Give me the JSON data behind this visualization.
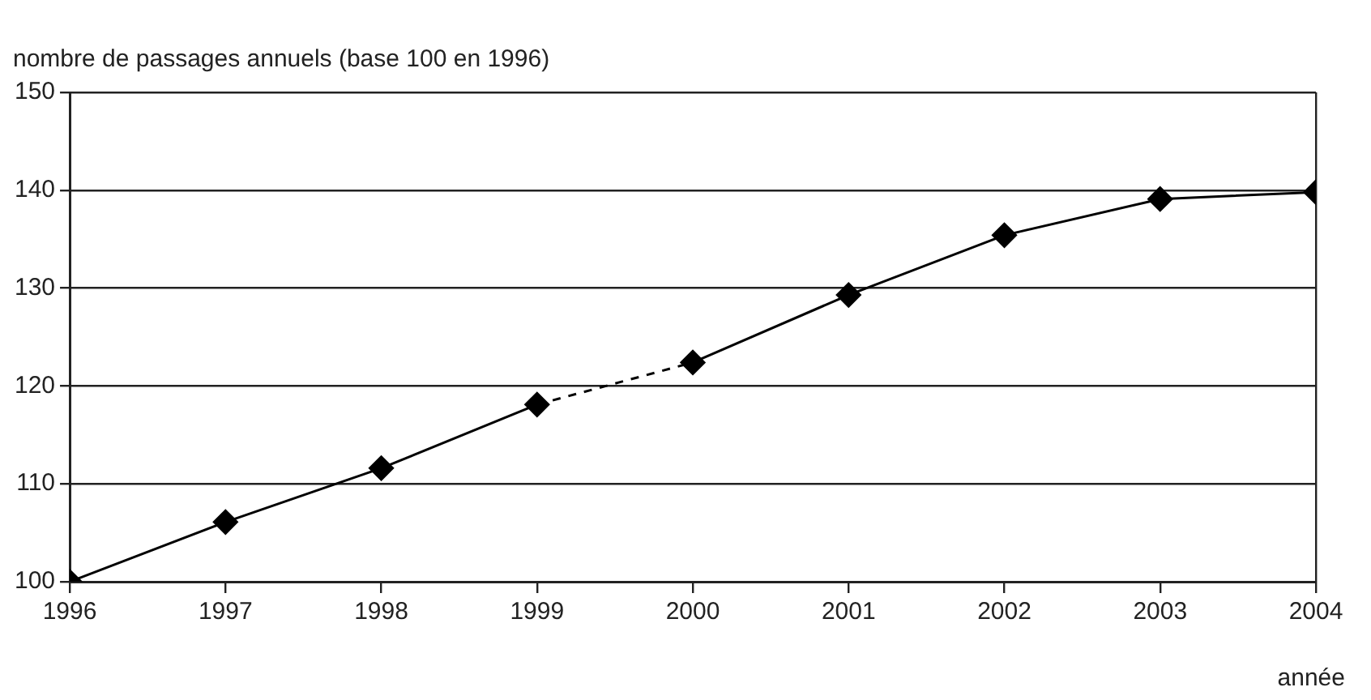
{
  "chart_data": {
    "type": "line",
    "ylabel": "nombre de passages annuels (base 100 en 1996)",
    "xlabel": "année",
    "xlim": [
      1996,
      2004
    ],
    "xticks": [
      1996,
      1997,
      1998,
      1999,
      2000,
      2001,
      2002,
      2003,
      2004
    ],
    "ylim": [
      100,
      150
    ],
    "yticks": [
      100,
      110,
      120,
      130,
      140,
      150
    ],
    "grid": "y",
    "legend": false,
    "series": [
      {
        "color": "#000000",
        "x": [
          1996,
          1997,
          1998,
          1999
        ],
        "values": [
          100,
          106.1,
          111.6,
          118.1
        ],
        "marker": "diamond",
        "line_style": "solid"
      },
      {
        "color": "#000000",
        "x": [
          1999,
          2000
        ],
        "values": [
          118.1,
          122.4
        ],
        "line_style": "dashed"
      },
      {
        "color": "#000000",
        "x": [
          2000,
          2001,
          2002,
          2003,
          2004
        ],
        "values": [
          122.4,
          129.3,
          135.4,
          139.1,
          139.8
        ],
        "marker": "diamond",
        "line_style": "solid"
      }
    ]
  }
}
